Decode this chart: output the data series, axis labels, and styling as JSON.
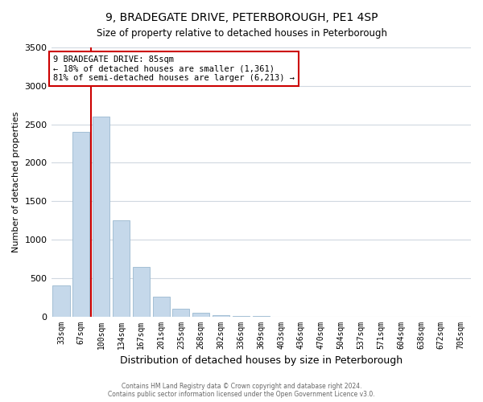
{
  "title": "9, BRADEGATE DRIVE, PETERBOROUGH, PE1 4SP",
  "subtitle": "Size of property relative to detached houses in Peterborough",
  "xlabel": "Distribution of detached houses by size in Peterborough",
  "ylabel": "Number of detached properties",
  "bar_labels": [
    "33sqm",
    "67sqm",
    "100sqm",
    "134sqm",
    "167sqm",
    "201sqm",
    "235sqm",
    "268sqm",
    "302sqm",
    "336sqm",
    "369sqm",
    "403sqm",
    "436sqm",
    "470sqm",
    "504sqm",
    "537sqm",
    "571sqm",
    "604sqm",
    "638sqm",
    "672sqm",
    "705sqm"
  ],
  "bar_values": [
    400,
    2400,
    2600,
    1250,
    640,
    260,
    100,
    50,
    20,
    5,
    2,
    0,
    0,
    0,
    0,
    0,
    0,
    0,
    0,
    0,
    0
  ],
  "bar_color": "#c5d8ea",
  "bar_edge_color": "#9ab8d0",
  "vline_color": "#cc0000",
  "vline_position": 1.5,
  "ylim": [
    0,
    3500
  ],
  "yticks": [
    0,
    500,
    1000,
    1500,
    2000,
    2500,
    3000,
    3500
  ],
  "annotation_title": "9 BRADEGATE DRIVE: 85sqm",
  "annotation_line1": "← 18% of detached houses are smaller (1,361)",
  "annotation_line2": "81% of semi-detached houses are larger (6,213) →",
  "annotation_box_facecolor": "#ffffff",
  "annotation_box_edgecolor": "#cc0000",
  "footer_line1": "Contains HM Land Registry data © Crown copyright and database right 2024.",
  "footer_line2": "Contains public sector information licensed under the Open Government Licence v3.0.",
  "fig_facecolor": "#ffffff",
  "plot_facecolor": "#ffffff",
  "grid_color": "#d0d8e0"
}
